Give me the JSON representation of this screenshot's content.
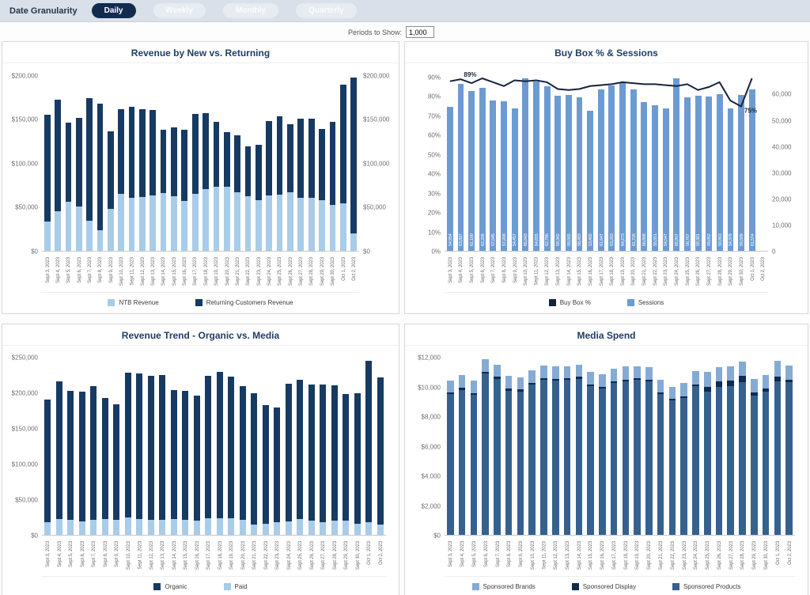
{
  "toolbar": {
    "label": "Date Granularity",
    "options": [
      {
        "label": "Daily",
        "active": true
      },
      {
        "label": "Weekly",
        "active": false
      },
      {
        "label": "Monthly",
        "active": false
      },
      {
        "label": "Quarterly",
        "active": false
      }
    ]
  },
  "periods": {
    "label": "Periods to Show:",
    "value": "1,000"
  },
  "colors": {
    "navy": "#173a63",
    "light_blue": "#a9cce8",
    "session_blue": "#6c9bd2",
    "products_blue": "#35618f",
    "display_navy": "#0f2b4d",
    "brands_blue": "#85abd4",
    "line_navy": "#16233f",
    "active_pill": "#122c50",
    "toolbar_bg": "#d9e0e9"
  },
  "chart_data": [
    {
      "type": "bar",
      "stacked": true,
      "title": "Revenue by New vs. Returning",
      "categories": [
        "Sept 3, 2023",
        "Sept 4, 2023",
        "Sept 5, 2023",
        "Sept 6, 2023",
        "Sept 7, 2023",
        "Sept 8, 2023",
        "Sept 9, 2023",
        "Sept 10, 2023",
        "Sept 11, 2023",
        "Sept 12, 2023",
        "Sept 13, 2023",
        "Sept 14, 2023",
        "Sept 15, 2023",
        "Sept 16, 2023",
        "Sept 17, 2023",
        "Sept 18, 2023",
        "Sept 19, 2023",
        "Sept 20, 2023",
        "Sept 21, 2023",
        "Sept 22, 2023",
        "Sept 23, 2023",
        "Sept 24, 2023",
        "Sept 25, 2023",
        "Sept 26, 2023",
        "Sept 27, 2023",
        "Sept 28, 2023",
        "Sept 29, 2023",
        "Sept 30, 2023",
        "Oct 1, 2023",
        "Oct 2, 2023"
      ],
      "series": [
        {
          "name": "NTB Revenue",
          "color": "#a9cce8",
          "values": [
            33000,
            45000,
            56000,
            50000,
            34000,
            23000,
            48000,
            65000,
            60000,
            61000,
            63000,
            66000,
            62000,
            57000,
            65000,
            70000,
            73000,
            73000,
            67000,
            62000,
            58000,
            63000,
            64000,
            67000,
            60000,
            60000,
            58000,
            52000,
            54000,
            20000
          ]
        },
        {
          "name": "Returning Customers Revenue",
          "color": "#173a63",
          "values": [
            122000,
            127000,
            90000,
            101000,
            140000,
            144000,
            88000,
            96000,
            104000,
            100000,
            97000,
            72000,
            78000,
            81000,
            91000,
            87000,
            74000,
            62000,
            64000,
            57000,
            63000,
            85000,
            89000,
            77000,
            90000,
            90000,
            81000,
            95000,
            135000,
            177000
          ]
        }
      ],
      "legend": [
        {
          "label": "NTB Revenue",
          "color": "#a9cce8"
        },
        {
          "label": "Returning Customers Revenue",
          "color": "#173a63"
        }
      ],
      "ylim_left": [
        0,
        207000
      ],
      "yticks_left": [
        {
          "v": 0,
          "label": "$0"
        },
        {
          "v": 50000,
          "label": "$50,000"
        },
        {
          "v": 100000,
          "label": "$100,000"
        },
        {
          "v": 150000,
          "label": "$150,000"
        },
        {
          "v": 200000,
          "label": "$200,000"
        }
      ],
      "yticks_right": [
        {
          "v": 0,
          "label": "$0"
        },
        {
          "v": 50000,
          "label": "$50,000"
        },
        {
          "v": 100000,
          "label": "$100,000"
        },
        {
          "v": 150000,
          "label": "$150,000"
        },
        {
          "v": 200000,
          "label": "$200,000"
        }
      ],
      "grid": false,
      "legend_position": "bottom"
    },
    {
      "type": "bar",
      "stacked": false,
      "title": "Buy Box % & Sessions",
      "categories": [
        "Sept 3, 2023",
        "Sept 4, 2023",
        "Sept 5, 2023",
        "Sept 6, 2023",
        "Sept 7, 2023",
        "Sept 8, 2023",
        "Sept 9, 2023",
        "Sept 10, 2023",
        "Sept 11, 2023",
        "Sept 12, 2023",
        "Sept 13, 2023",
        "Sept 14, 2023",
        "Sept 15, 2023",
        "Sept 16, 2023",
        "Sept 17, 2023",
        "Sept 18, 2023",
        "Sept 19, 2023",
        "Sept 20, 2023",
        "Sept 21, 2023",
        "Sept 22, 2023",
        "Sept 23, 2023",
        "Sept 24, 2023",
        "Sept 25, 2023",
        "Sept 26, 2023",
        "Sept 27, 2023",
        "Sept 28, 2023",
        "Sept 29, 2023",
        "Sept 30, 2023",
        "Oct 1, 2023",
        "Oct 2, 2023"
      ],
      "series": [
        {
          "name": "Sessions",
          "color": "#6c9bd2",
          "axis": "right",
          "values": [
            54954,
            63807,
            61100,
            62209,
            57545,
            57208,
            54457,
            65843,
            64655,
            62786,
            59342,
            59565,
            58493,
            53460,
            61647,
            63263,
            64273,
            61726,
            56808,
            55551,
            54547,
            65907,
            58767,
            59301,
            59052,
            59863,
            54379,
            59509,
            61574,
            null
          ]
        }
      ],
      "line": {
        "name": "Buy Box %",
        "color": "#16233f",
        "values": [
          88,
          89,
          87,
          89.5,
          87.5,
          85.5,
          88.5,
          88,
          88.5,
          87.5,
          84,
          83.5,
          84,
          85.5,
          86,
          86.5,
          87.5,
          87,
          86.5,
          86.5,
          86,
          85.5,
          86.5,
          83.5,
          85,
          87.5,
          78,
          75,
          89.5,
          null
        ],
        "annotations": [
          {
            "index": 1,
            "label": "89%"
          },
          {
            "index": 27,
            "label": "75%"
          }
        ]
      },
      "bar_value_labels": true,
      "legend": [
        {
          "label": "Buy Box %",
          "color": "#16233f"
        },
        {
          "label": "Sessions",
          "color": "#6c9bd2"
        }
      ],
      "ylim_left": [
        0,
        94
      ],
      "ylim_right": [
        0,
        69500
      ],
      "yticks_left": [
        {
          "v": 0,
          "label": "0%"
        },
        {
          "v": 10,
          "label": "10%"
        },
        {
          "v": 20,
          "label": "20%"
        },
        {
          "v": 30,
          "label": "30%"
        },
        {
          "v": 40,
          "label": "40%"
        },
        {
          "v": 50,
          "label": "50%"
        },
        {
          "v": 60,
          "label": "60%"
        },
        {
          "v": 70,
          "label": "70%"
        },
        {
          "v": 80,
          "label": "80%"
        },
        {
          "v": 90,
          "label": "90%"
        }
      ],
      "yticks_right": [
        {
          "v": 0,
          "label": "0"
        },
        {
          "v": 10000,
          "label": "10,000"
        },
        {
          "v": 20000,
          "label": "20,000"
        },
        {
          "v": 30000,
          "label": "30,000"
        },
        {
          "v": 40000,
          "label": "40,000"
        },
        {
          "v": 50000,
          "label": "50,000"
        },
        {
          "v": 60000,
          "label": "60,000"
        }
      ],
      "grid": false,
      "legend_position": "bottom"
    },
    {
      "type": "bar",
      "stacked": true,
      "title": "Revenue Trend - Organic vs. Media",
      "categories": [
        "Sept 3, 2023",
        "Sept 4, 2023",
        "Sept 5, 2023",
        "Sept 6, 2023",
        "Sept 7, 2023",
        "Sept 8, 2023",
        "Sept 9, 2023",
        "Sept 10, 2023",
        "Sept 11, 2023",
        "Sept 12, 2023",
        "Sept 13, 2023",
        "Sept 14, 2023",
        "Sept 15, 2023",
        "Sept 16, 2023",
        "Sept 17, 2023",
        "Sept 18, 2023",
        "Sept 19, 2023",
        "Sept 20, 2023",
        "Sept 21, 2023",
        "Sept 22, 2023",
        "Sept 23, 2023",
        "Sept 24, 2023",
        "Sept 25, 2023",
        "Sept 26, 2023",
        "Sept 27, 2023",
        "Sept 28, 2023",
        "Sept 29, 2023",
        "Sept 30, 2023",
        "Oct 1, 2023",
        "Oct 2, 2023"
      ],
      "series": [
        {
          "name": "Paid",
          "color": "#a9cce8",
          "values": [
            18000,
            22000,
            21000,
            19000,
            21000,
            22000,
            21000,
            24000,
            22000,
            21000,
            21000,
            22000,
            21000,
            20000,
            23000,
            23000,
            23000,
            21000,
            15000,
            16000,
            18000,
            19000,
            22000,
            20000,
            18000,
            20000,
            20000,
            16000,
            18000,
            15000
          ]
        },
        {
          "name": "Organic",
          "color": "#173a63",
          "values": [
            172000,
            194000,
            181000,
            182000,
            188000,
            170000,
            163000,
            204000,
            205000,
            202000,
            204000,
            182000,
            181000,
            176000,
            200000,
            206000,
            199000,
            188000,
            184000,
            166000,
            161000,
            193000,
            196000,
            191000,
            193000,
            190000,
            178000,
            183000,
            227000,
            206000
          ]
        }
      ],
      "legend": [
        {
          "label": "Organic",
          "color": "#173a63"
        },
        {
          "label": "Paid",
          "color": "#a9cce8"
        }
      ],
      "ylim_left": [
        0,
        258000
      ],
      "yticks_left": [
        {
          "v": 0,
          "label": "$0"
        },
        {
          "v": 50000,
          "label": "$50,000"
        },
        {
          "v": 100000,
          "label": "$100,000"
        },
        {
          "v": 150000,
          "label": "$150,000"
        },
        {
          "v": 200000,
          "label": "$200,000"
        },
        {
          "v": 250000,
          "label": "$250,000"
        }
      ],
      "grid": false,
      "legend_position": "bottom"
    },
    {
      "type": "bar",
      "stacked": true,
      "title": "Media Spend",
      "categories": [
        "Sept 3, 2023",
        "Sept 4, 2023",
        "Sept 5, 2023",
        "Sept 6, 2023",
        "Sept 7, 2023",
        "Sept 8, 2023",
        "Sept 9, 2023",
        "Sept 10, 2023",
        "Sept 11, 2023",
        "Sept 12, 2023",
        "Sept 13, 2023",
        "Sept 14, 2023",
        "Sept 15, 2023",
        "Sept 16, 2023",
        "Sept 17, 2023",
        "Sept 18, 2023",
        "Sept 19, 2023",
        "Sept 20, 2023",
        "Sept 21, 2023",
        "Sept 22, 2023",
        "Sept 23, 2023",
        "Sept 24, 2023",
        "Sept 25, 2023",
        "Sept 26, 2023",
        "Sept 27, 2023",
        "Sept 28, 2023",
        "Sept 29, 2023",
        "Sept 30, 2023",
        "Oct 1, 2023",
        "Oct 2, 2023"
      ],
      "series": [
        {
          "name": "Sponsored Products",
          "color": "#35618f",
          "values": [
            9500,
            9800,
            9450,
            10900,
            10550,
            9750,
            9700,
            10150,
            10450,
            10400,
            10450,
            10550,
            10050,
            9900,
            10250,
            10350,
            10450,
            10350,
            9500,
            9100,
            9250,
            10050,
            9700,
            10000,
            10050,
            10300,
            9400,
            9700,
            10350,
            10300
          ]
        },
        {
          "name": "Sponsored Display",
          "color": "#0f2b4d",
          "values": [
            100,
            120,
            100,
            120,
            120,
            120,
            120,
            120,
            120,
            120,
            120,
            130,
            120,
            100,
            120,
            130,
            130,
            120,
            100,
            100,
            100,
            130,
            280,
            380,
            400,
            420,
            200,
            200,
            350,
            200
          ]
        },
        {
          "name": "Sponsored Brands",
          "color": "#85abd4",
          "values": [
            850,
            880,
            900,
            830,
            830,
            880,
            830,
            830,
            880,
            880,
            830,
            820,
            830,
            850,
            880,
            890,
            820,
            880,
            900,
            800,
            900,
            870,
            1020,
            970,
            950,
            980,
            950,
            900,
            1050,
            950
          ]
        }
      ],
      "legend": [
        {
          "label": "Sponsored Brands",
          "color": "#85abd4"
        },
        {
          "label": "Sponsored Display",
          "color": "#0f2b4d"
        },
        {
          "label": "Sponsored Products",
          "color": "#35618f"
        }
      ],
      "ylim_left": [
        0,
        12400
      ],
      "yticks_left": [
        {
          "v": 0,
          "label": "$0"
        },
        {
          "v": 2000,
          "label": "$2,000"
        },
        {
          "v": 4000,
          "label": "$4,000"
        },
        {
          "v": 6000,
          "label": "$6,000"
        },
        {
          "v": 8000,
          "label": "$8,000"
        },
        {
          "v": 10000,
          "label": "$10,000"
        },
        {
          "v": 12000,
          "label": "$12,000"
        }
      ],
      "grid": false,
      "legend_position": "bottom"
    }
  ]
}
